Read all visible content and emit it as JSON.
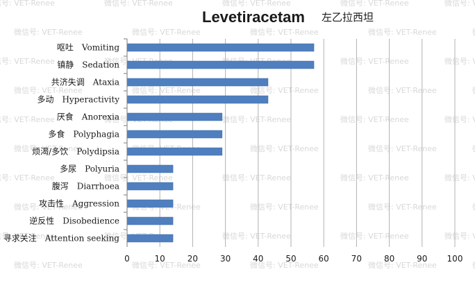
{
  "chart_data": {
    "type": "bar",
    "orientation": "horizontal",
    "title": "Levetiracetam",
    "subtitle": "左乙拉西坦",
    "categories": [
      {
        "cn": "呕吐",
        "en": "Vomiting"
      },
      {
        "cn": "镇静",
        "en": "Sedation"
      },
      {
        "cn": "共济失调",
        "en": "Ataxia"
      },
      {
        "cn": "多动",
        "en": "Hyperactivity"
      },
      {
        "cn": "厌食",
        "en": "Anorexia"
      },
      {
        "cn": "多食",
        "en": "Polyphagia"
      },
      {
        "cn": "烦渴/多饮",
        "en": "Polydipsia"
      },
      {
        "cn": "多尿",
        "en": "Polyuria"
      },
      {
        "cn": "腹泻",
        "en": "Diarrhoea"
      },
      {
        "cn": "攻击性",
        "en": "Aggression"
      },
      {
        "cn": "逆反性",
        "en": "Disobedience"
      },
      {
        "cn": "寻求关注",
        "en": "Attention seeking"
      }
    ],
    "values": [
      57,
      57,
      43,
      43,
      29,
      29,
      29,
      14,
      14,
      14,
      14,
      14
    ],
    "xlim": [
      0,
      100
    ],
    "xticks": [
      "0",
      "10",
      "20",
      "30",
      "40",
      "50",
      "60",
      "70",
      "80",
      "90",
      "100"
    ],
    "grid": "vertical",
    "bar_color": "#4f7fbf",
    "watermark": "微信号: VET-Renee"
  }
}
